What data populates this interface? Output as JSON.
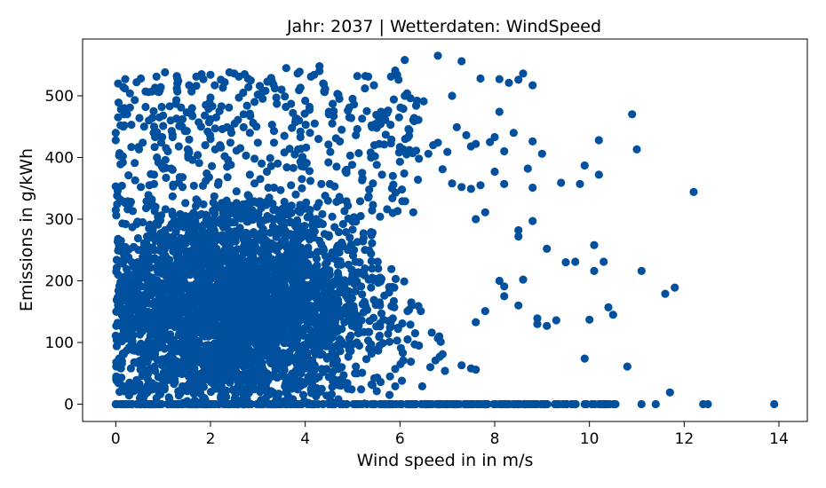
{
  "chart_data": {
    "type": "scatter",
    "title": "Jahr: 2037 | Wetterdaten: WindSpeed",
    "xlabel": "Wind speed in in m/s",
    "ylabel": "Emissions in g/kWh",
    "xlim": [
      -0.7,
      14.6
    ],
    "ylim": [
      -28,
      592
    ],
    "xticks": [
      "0",
      "2",
      "4",
      "6",
      "8",
      "10",
      "12",
      "14"
    ],
    "yticks": [
      "0",
      "100",
      "200",
      "300",
      "400",
      "500"
    ],
    "grid": false,
    "marker_color": "#00509e",
    "points": [
      [
        0.0,
        353
      ],
      [
        0.0,
        315
      ],
      [
        0.0,
        440
      ],
      [
        0.0,
        428
      ],
      [
        0.1,
        452
      ],
      [
        0.1,
        389
      ],
      [
        0.2,
        326
      ],
      [
        0.3,
        504
      ],
      [
        0.4,
        493
      ],
      [
        0.4,
        391
      ],
      [
        0.5,
        464
      ],
      [
        0.6,
        450
      ],
      [
        0.7,
        460
      ],
      [
        0.8,
        475
      ],
      [
        0.8,
        440
      ],
      [
        0.9,
        392
      ],
      [
        1.0,
        382
      ],
      [
        1.0,
        468
      ],
      [
        1.1,
        410
      ],
      [
        1.2,
        437
      ],
      [
        1.2,
        380
      ],
      [
        1.3,
        520
      ],
      [
        1.3,
        528
      ],
      [
        1.3,
        507
      ],
      [
        1.4,
        450
      ],
      [
        1.5,
        473
      ],
      [
        1.5,
        443
      ],
      [
        1.6,
        470
      ],
      [
        1.7,
        516
      ],
      [
        1.7,
        531
      ],
      [
        1.8,
        450
      ],
      [
        1.9,
        485
      ],
      [
        2.0,
        462
      ],
      [
        2.0,
        534
      ],
      [
        2.0,
        497
      ],
      [
        2.1,
        413
      ],
      [
        2.1,
        447
      ],
      [
        2.2,
        420
      ],
      [
        2.3,
        522
      ],
      [
        2.4,
        538
      ],
      [
        2.5,
        536
      ],
      [
        2.6,
        531
      ],
      [
        2.6,
        497
      ],
      [
        2.7,
        470
      ],
      [
        2.8,
        514
      ],
      [
        2.9,
        456
      ],
      [
        3.0,
        502
      ],
      [
        3.1,
        495
      ],
      [
        3.2,
        523
      ],
      [
        3.3,
        453
      ],
      [
        3.4,
        487
      ],
      [
        3.5,
        510
      ],
      [
        3.6,
        545
      ],
      [
        3.7,
        487
      ],
      [
        3.8,
        462
      ],
      [
        3.9,
        513
      ],
      [
        4.0,
        492
      ],
      [
        4.1,
        440
      ],
      [
        4.2,
        455
      ],
      [
        4.3,
        540
      ],
      [
        4.3,
        548
      ],
      [
        4.4,
        507
      ],
      [
        4.5,
        470
      ],
      [
        4.5,
        474
      ],
      [
        4.6,
        475
      ],
      [
        4.7,
        502
      ],
      [
        4.9,
        476
      ],
      [
        5.0,
        495
      ],
      [
        5.1,
        532
      ],
      [
        5.2,
        463
      ],
      [
        5.3,
        475
      ],
      [
        5.4,
        452
      ],
      [
        5.5,
        469
      ],
      [
        5.6,
        474
      ],
      [
        5.7,
        437
      ],
      [
        5.8,
        453
      ],
      [
        5.9,
        541
      ],
      [
        6.0,
        393
      ],
      [
        6.0,
        417
      ],
      [
        6.1,
        500
      ],
      [
        6.1,
        558
      ],
      [
        6.2,
        444
      ],
      [
        6.3,
        459
      ],
      [
        6.4,
        398
      ],
      [
        6.5,
        491
      ],
      [
        6.6,
        406
      ],
      [
        6.7,
        420
      ],
      [
        6.8,
        424
      ],
      [
        6.8,
        565
      ],
      [
        7.0,
        409
      ],
      [
        7.1,
        500
      ],
      [
        7.2,
        449
      ],
      [
        7.3,
        556
      ],
      [
        7.4,
        436
      ],
      [
        7.5,
        418
      ],
      [
        7.6,
        422
      ],
      [
        7.7,
        528
      ],
      [
        7.9,
        425
      ],
      [
        8.0,
        433
      ],
      [
        8.1,
        527
      ],
      [
        8.1,
        474
      ],
      [
        8.2,
        410
      ],
      [
        8.3,
        521
      ],
      [
        8.4,
        440
      ],
      [
        8.5,
        526
      ],
      [
        8.6,
        536
      ],
      [
        8.7,
        382
      ],
      [
        8.8,
        517
      ],
      [
        8.8,
        426
      ],
      [
        9.0,
        406
      ],
      [
        9.4,
        359
      ],
      [
        9.8,
        357
      ],
      [
        9.9,
        387
      ],
      [
        10.2,
        428
      ],
      [
        10.2,
        372
      ],
      [
        10.9,
        470
      ],
      [
        11.0,
        413
      ],
      [
        12.2,
        344
      ],
      [
        6.9,
        381
      ],
      [
        7.1,
        358
      ],
      [
        7.3,
        352
      ],
      [
        7.5,
        349
      ],
      [
        7.7,
        355
      ],
      [
        8.0,
        377
      ],
      [
        8.2,
        357
      ],
      [
        8.5,
        272
      ],
      [
        8.5,
        282
      ],
      [
        8.8,
        297
      ],
      [
        8.8,
        351
      ],
      [
        9.1,
        252
      ],
      [
        7.6,
        300
      ],
      [
        7.8,
        311
      ],
      [
        8.1,
        200
      ],
      [
        8.2,
        191
      ],
      [
        8.6,
        202
      ],
      [
        8.9,
        139
      ],
      [
        9.5,
        230
      ],
      [
        9.7,
        231
      ],
      [
        10.0,
        137
      ],
      [
        10.1,
        258
      ],
      [
        10.1,
        216
      ],
      [
        10.3,
        231
      ],
      [
        10.4,
        157
      ],
      [
        10.5,
        145
      ],
      [
        11.1,
        216
      ],
      [
        11.6,
        179
      ],
      [
        11.8,
        189
      ],
      [
        9.3,
        136
      ],
      [
        9.1,
        127
      ],
      [
        8.9,
        130
      ],
      [
        8.5,
        160
      ],
      [
        8.2,
        175
      ],
      [
        7.8,
        151
      ],
      [
        7.6,
        133
      ],
      [
        7.6,
        56
      ],
      [
        7.5,
        58
      ],
      [
        7.3,
        63
      ],
      [
        9.9,
        74
      ],
      [
        10.8,
        61
      ],
      [
        11.7,
        19
      ],
      [
        0.0,
        0
      ],
      [
        0.3,
        0
      ],
      [
        0.6,
        0
      ],
      [
        0.9,
        0
      ],
      [
        1.2,
        0
      ],
      [
        1.5,
        0
      ],
      [
        1.8,
        0
      ],
      [
        2.1,
        0
      ],
      [
        2.4,
        0
      ],
      [
        2.7,
        0
      ],
      [
        3.0,
        0
      ],
      [
        3.3,
        0
      ],
      [
        3.6,
        0
      ],
      [
        3.9,
        0
      ],
      [
        4.2,
        0
      ],
      [
        4.5,
        0
      ],
      [
        4.8,
        0
      ],
      [
        5.1,
        0
      ],
      [
        5.4,
        0
      ],
      [
        5.7,
        0
      ],
      [
        6.0,
        0
      ],
      [
        6.3,
        0
      ],
      [
        6.6,
        0
      ],
      [
        6.9,
        0
      ],
      [
        7.2,
        0
      ],
      [
        7.5,
        0
      ],
      [
        7.8,
        0
      ],
      [
        8.1,
        0
      ],
      [
        8.4,
        0
      ],
      [
        8.7,
        0
      ],
      [
        9.0,
        0
      ],
      [
        9.5,
        0
      ],
      [
        9.9,
        0
      ],
      [
        10.2,
        0
      ],
      [
        10.3,
        0
      ],
      [
        10.4,
        0
      ],
      [
        11.1,
        0
      ],
      [
        11.4,
        0
      ],
      [
        12.4,
        0
      ],
      [
        12.5,
        0
      ],
      [
        13.9,
        0
      ]
    ]
  }
}
